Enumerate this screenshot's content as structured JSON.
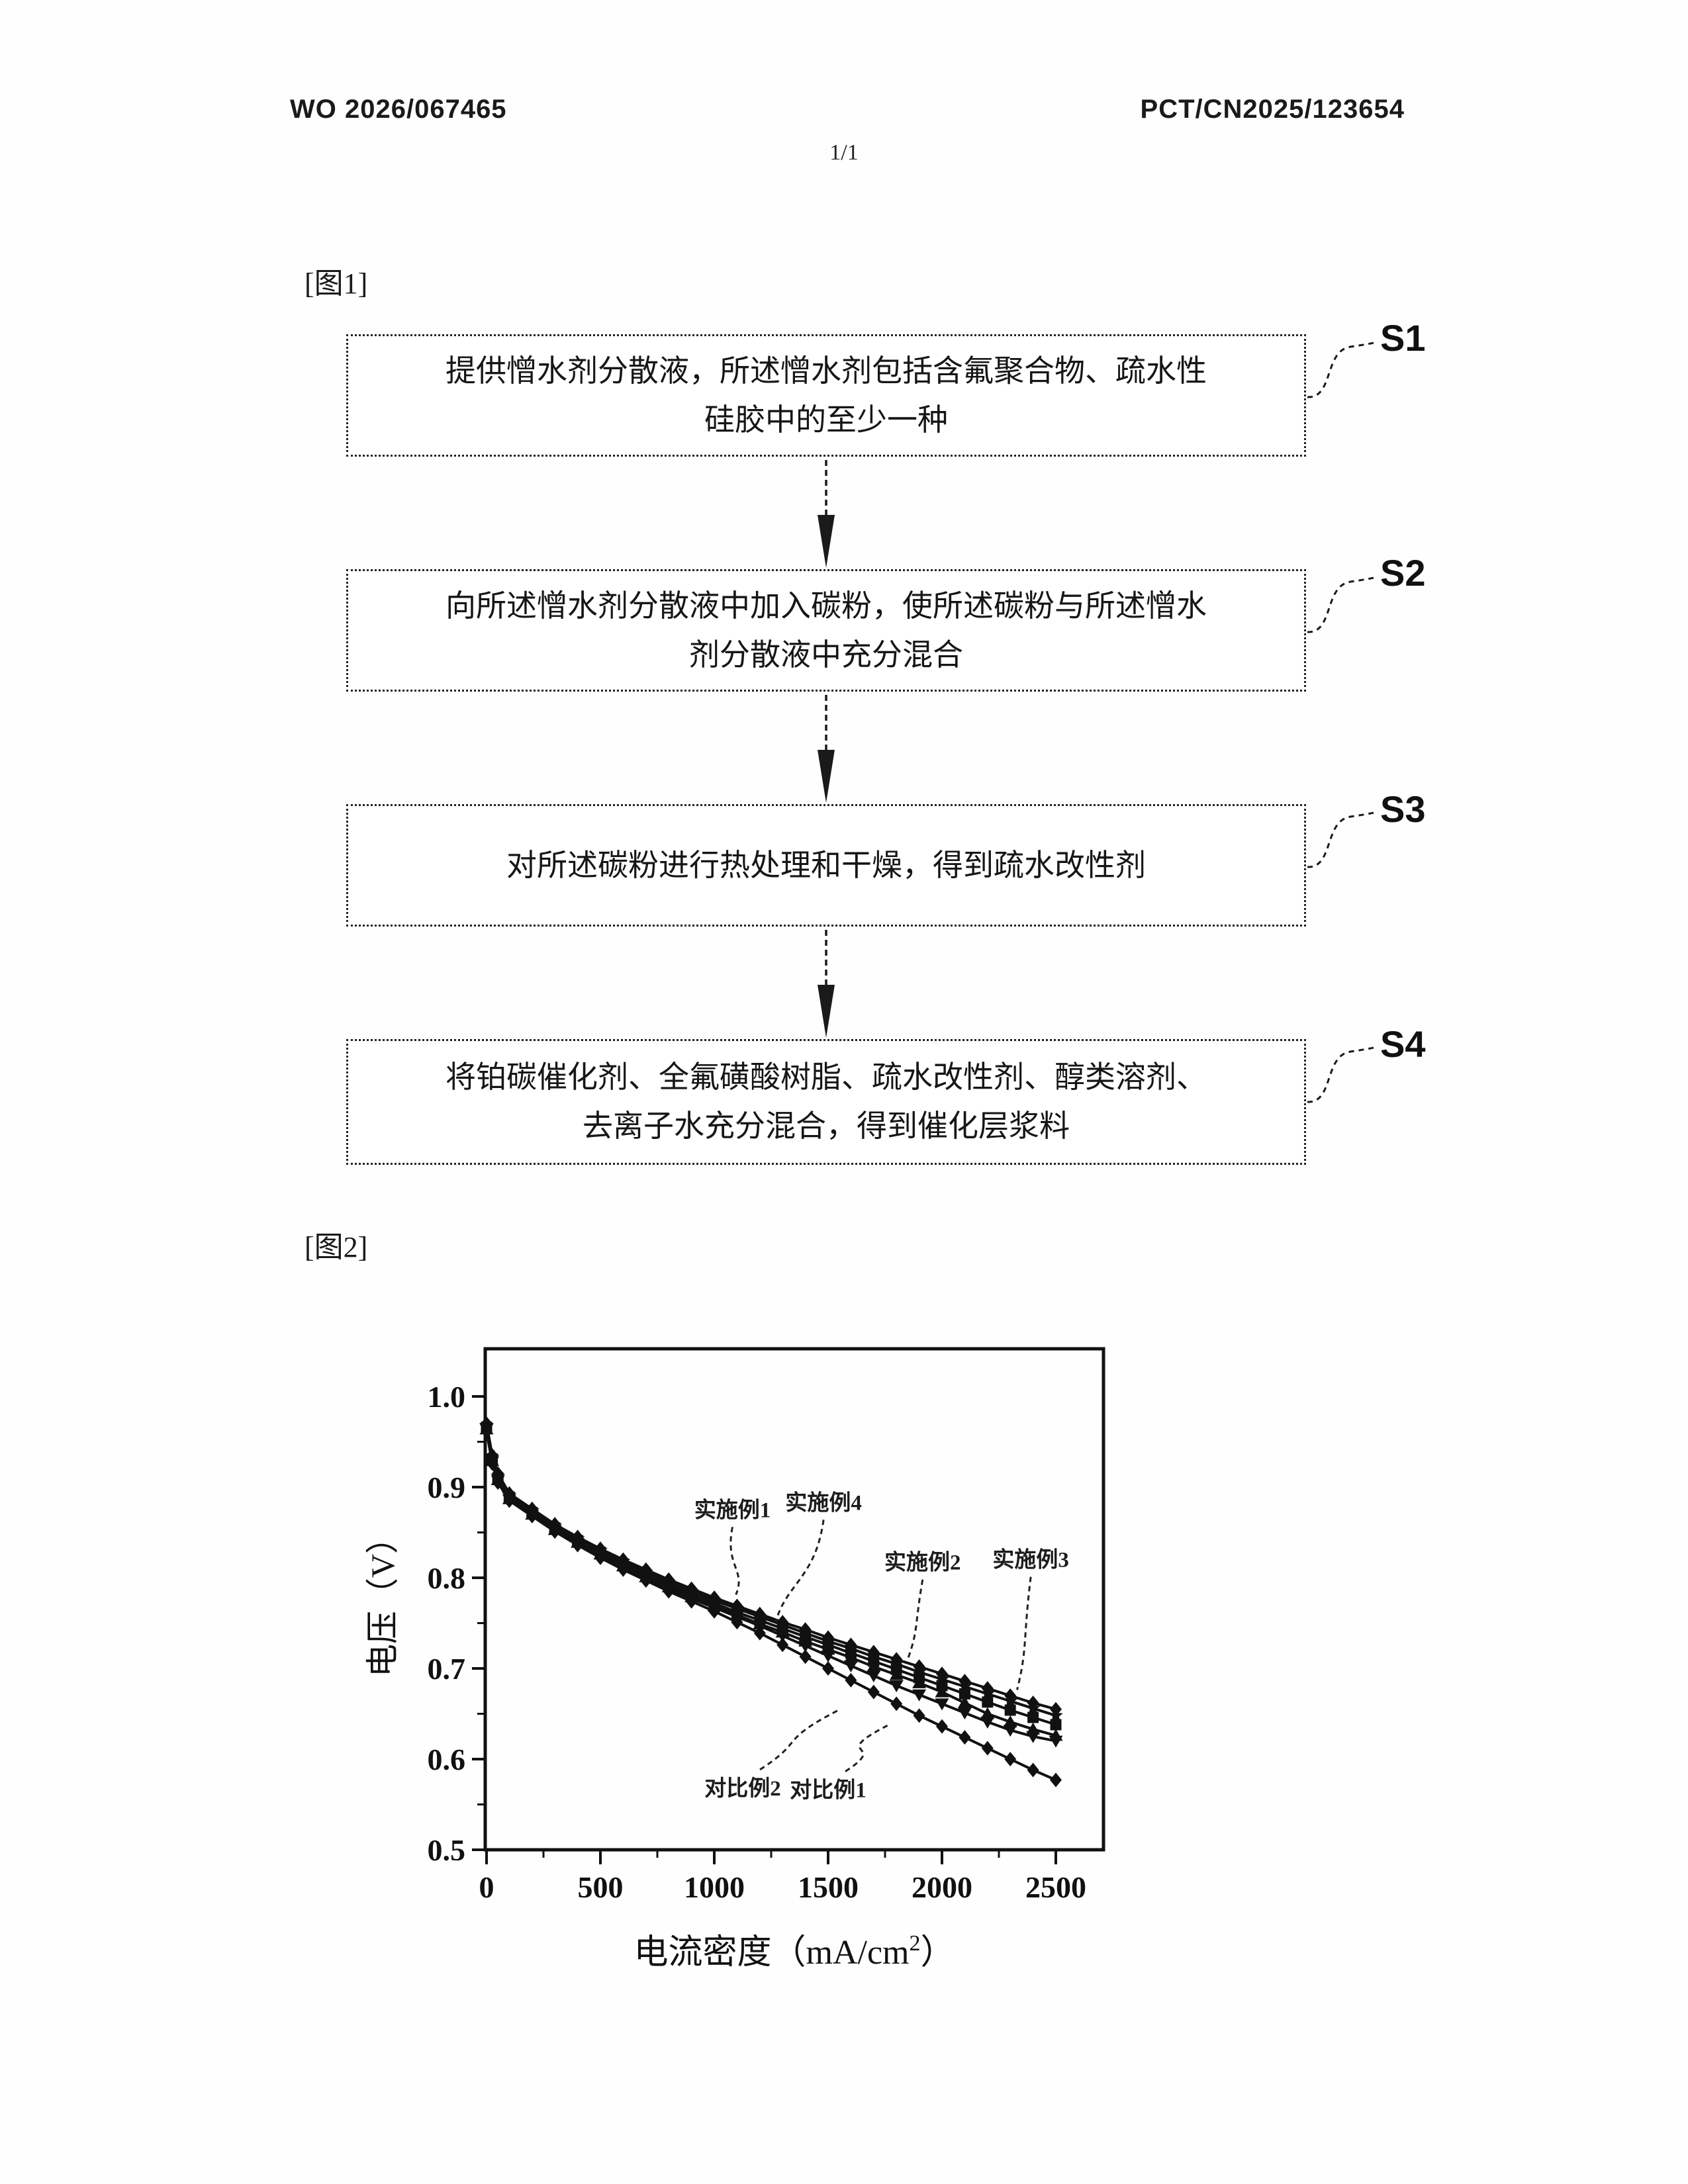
{
  "header": {
    "left": "WO 2026/067465",
    "right": "PCT/CN2025/123654",
    "page_indicator": "1/1"
  },
  "figure1": {
    "label": "[图1]",
    "steps": [
      {
        "id": "S1",
        "lines": [
          "提供憎水剂分散液，所述憎水剂包括含氟聚合物、疏水性",
          "硅胶中的至少一种"
        ]
      },
      {
        "id": "S2",
        "lines": [
          "向所述憎水剂分散液中加入碳粉，使所述碳粉与所述憎水",
          "剂分散液中充分混合"
        ]
      },
      {
        "id": "S3",
        "lines": [
          "对所述碳粉进行热处理和干燥，得到疏水改性剂"
        ]
      },
      {
        "id": "S4",
        "lines": [
          "将铂碳催化剂、全氟磺酸树脂、疏水改性剂、醇类溶剂、",
          "去离子水充分混合，得到催化层浆料"
        ]
      }
    ]
  },
  "figure2": {
    "label": "[图2]"
  },
  "chart_data": {
    "type": "line",
    "title": "",
    "xlabel": "电流密度（mA/cm²）",
    "xlabel_parts": {
      "main": "电流密度（mA/cm",
      "sup": "2",
      "close": "）"
    },
    "ylabel": "电压（V）",
    "xlim": [
      0,
      2710
    ],
    "ylim": [
      0.5,
      1.05
    ],
    "x_ticks": [
      0,
      500,
      1000,
      1500,
      2000,
      2500
    ],
    "y_ticks": [
      0.5,
      0.6,
      0.7,
      0.8,
      0.9,
      1.0
    ],
    "x_minor_ticks": [
      250,
      750,
      1250,
      1750,
      2250
    ],
    "y_minor_ticks": [
      0.55,
      0.65,
      0.75,
      0.85,
      0.95
    ],
    "grid": false,
    "legend": "annotated-callouts",
    "x": [
      0,
      25,
      50,
      100,
      200,
      300,
      400,
      500,
      600,
      700,
      800,
      900,
      1000,
      1100,
      1200,
      1300,
      1400,
      1500,
      1600,
      1700,
      1800,
      1900,
      2000,
      2100,
      2200,
      2300,
      2400,
      2500
    ],
    "series": [
      {
        "name": "实施例1",
        "marker": "diamond",
        "values": [
          0.97,
          0.935,
          0.915,
          0.893,
          0.876,
          0.859,
          0.845,
          0.832,
          0.82,
          0.809,
          0.798,
          0.788,
          0.778,
          0.769,
          0.76,
          0.751,
          0.743,
          0.734,
          0.726,
          0.718,
          0.71,
          0.702,
          0.694,
          0.686,
          0.678,
          0.67,
          0.662,
          0.655
        ]
      },
      {
        "name": "实施例4",
        "marker": "star",
        "values": [
          0.968,
          0.933,
          0.912,
          0.891,
          0.874,
          0.857,
          0.843,
          0.83,
          0.818,
          0.806,
          0.795,
          0.785,
          0.775,
          0.766,
          0.757,
          0.748,
          0.739,
          0.73,
          0.722,
          0.713,
          0.705,
          0.696,
          0.688,
          0.68,
          0.672,
          0.664,
          0.656,
          0.648
        ]
      },
      {
        "name": "实施例2",
        "marker": "square",
        "values": [
          0.966,
          0.931,
          0.91,
          0.889,
          0.872,
          0.855,
          0.841,
          0.828,
          0.815,
          0.803,
          0.792,
          0.782,
          0.772,
          0.762,
          0.753,
          0.744,
          0.735,
          0.726,
          0.717,
          0.708,
          0.699,
          0.69,
          0.681,
          0.672,
          0.663,
          0.654,
          0.646,
          0.638
        ]
      },
      {
        "name": "实施例3",
        "marker": "triangle-up",
        "values": [
          0.964,
          0.929,
          0.908,
          0.887,
          0.87,
          0.853,
          0.839,
          0.826,
          0.813,
          0.801,
          0.79,
          0.779,
          0.769,
          0.759,
          0.749,
          0.74,
          0.73,
          0.721,
          0.712,
          0.702,
          0.693,
          0.684,
          0.674,
          0.662,
          0.65,
          0.641,
          0.633,
          0.626
        ]
      },
      {
        "name": "对比例1",
        "marker": "triangle-down",
        "values": [
          0.964,
          0.928,
          0.907,
          0.886,
          0.869,
          0.852,
          0.838,
          0.824,
          0.811,
          0.799,
          0.788,
          0.777,
          0.767,
          0.757,
          0.747,
          0.736,
          0.725,
          0.714,
          0.703,
          0.692,
          0.681,
          0.671,
          0.661,
          0.651,
          0.641,
          0.632,
          0.625,
          0.62
        ]
      },
      {
        "name": "对比例2",
        "marker": "diamond",
        "values": [
          0.962,
          0.926,
          0.905,
          0.885,
          0.868,
          0.851,
          0.836,
          0.822,
          0.809,
          0.797,
          0.785,
          0.774,
          0.763,
          0.751,
          0.739,
          0.726,
          0.713,
          0.7,
          0.687,
          0.674,
          0.661,
          0.648,
          0.636,
          0.624,
          0.612,
          0.6,
          0.588,
          0.577
        ]
      }
    ],
    "annotations": [
      {
        "text": "实施例1",
        "label_x": 1080,
        "label_v": 0.875,
        "point_x": 1095,
        "point_v": 0.777,
        "dir": "down"
      },
      {
        "text": "实施例4",
        "label_x": 1480,
        "label_v": 0.883,
        "point_x": 1270,
        "point_v": 0.747,
        "dir": "down"
      },
      {
        "text": "实施例2",
        "label_x": 1915,
        "label_v": 0.817,
        "point_x": 1850,
        "point_v": 0.706,
        "dir": "down"
      },
      {
        "text": "实施例3",
        "label_x": 2390,
        "label_v": 0.82,
        "point_x": 2330,
        "point_v": 0.672,
        "dir": "down"
      },
      {
        "text": "对比例2",
        "label_x": 1125,
        "label_v": 0.568,
        "point_x": 1550,
        "point_v": 0.659,
        "dir": "up"
      },
      {
        "text": "对比例1",
        "label_x": 1500,
        "label_v": 0.566,
        "point_x": 1765,
        "point_v": 0.642,
        "dir": "up"
      }
    ],
    "ink_color": "#111111"
  }
}
